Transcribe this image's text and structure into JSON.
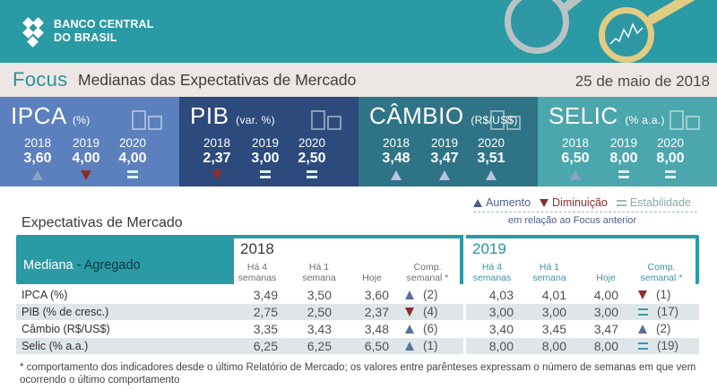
{
  "logo": {
    "line1": "BANCO CENTRAL",
    "line2": "DO BRASIL"
  },
  "title": {
    "focus": "Focus",
    "subtitle": "Medianas das Expectativas de Mercado",
    "date": "25 de maio de 2018"
  },
  "panels": [
    {
      "name": "IPCA",
      "unit": "(%)",
      "color": "#5c80bd",
      "years": [
        {
          "y": "2018",
          "v": "3,60",
          "mark": "up"
        },
        {
          "y": "2019",
          "v": "4,00",
          "mark": "down"
        },
        {
          "y": "2020",
          "v": "4,00",
          "mark": "eq"
        }
      ]
    },
    {
      "name": "PIB",
      "unit": "(var. %)",
      "color": "#2c4a7c",
      "years": [
        {
          "y": "2018",
          "v": "2,37",
          "mark": "down"
        },
        {
          "y": "2019",
          "v": "3,00",
          "mark": "eq"
        },
        {
          "y": "2020",
          "v": "2,50",
          "mark": "eq"
        }
      ]
    },
    {
      "name": "CÂMBIO",
      "unit": "(R$/US$)",
      "color": "#2f7486",
      "years": [
        {
          "y": "2018",
          "v": "3,48",
          "mark": "up"
        },
        {
          "y": "2019",
          "v": "3,47",
          "mark": "up"
        },
        {
          "y": "2020",
          "v": "3,51",
          "mark": "up"
        }
      ]
    },
    {
      "name": "SELIC",
      "unit": "(% a.a.)",
      "color": "#4ca6ad",
      "years": [
        {
          "y": "2018",
          "v": "6,50",
          "mark": "up"
        },
        {
          "y": "2019",
          "v": "8,00",
          "mark": "eq"
        },
        {
          "y": "2020",
          "v": "8,00",
          "mark": "eq"
        }
      ]
    }
  ],
  "legend": {
    "up": "Aumento",
    "down": "Diminuição",
    "stable": "Estabilidade",
    "note": "em relação ao Focus anterior"
  },
  "table": {
    "section_title": "Expectativas de Mercado",
    "mediana": "Mediana",
    "agregado": " - Agregado",
    "year1": "2018",
    "year2": "2019",
    "col_4sem": [
      "Há 4",
      "semanas"
    ],
    "col_1sem": [
      "Há 1",
      "semana"
    ],
    "col_hoje": "Hoje",
    "col_comp": [
      "Comp.",
      "semanal *"
    ],
    "rows": [
      {
        "label": "IPCA (%)",
        "a": [
          "3,49",
          "3,50",
          "3,60"
        ],
        "ac": "up",
        "an": "(2)",
        "b": [
          "4,03",
          "4,01",
          "4,00"
        ],
        "bc": "down",
        "bn": "(1)"
      },
      {
        "label": "PIB (% de cresc.)",
        "a": [
          "2,75",
          "2,50",
          "2,37"
        ],
        "ac": "down",
        "an": "(4)",
        "b": [
          "3,00",
          "3,00",
          "3,00"
        ],
        "bc": "eq",
        "bn": "(17)"
      },
      {
        "label": "Câmbio (R$/US$)",
        "a": [
          "3,35",
          "3,43",
          "3,48"
        ],
        "ac": "up",
        "an": "(6)",
        "b": [
          "3,40",
          "3,45",
          "3,47"
        ],
        "bc": "up",
        "bn": "(2)"
      },
      {
        "label": "Selic (% a.a.)",
        "a": [
          "6,25",
          "6,25",
          "6,50"
        ],
        "ac": "up",
        "an": "(1)",
        "b": [
          "8,00",
          "8,00",
          "8,00"
        ],
        "bc": "eq",
        "bn": "(19)"
      }
    ]
  },
  "footnote": "* comportamento dos indicadores desde o último Relatório de Mercado; os valores entre parênteses expressam o número de semanas em que vem ocorrendo o último comportamento"
}
